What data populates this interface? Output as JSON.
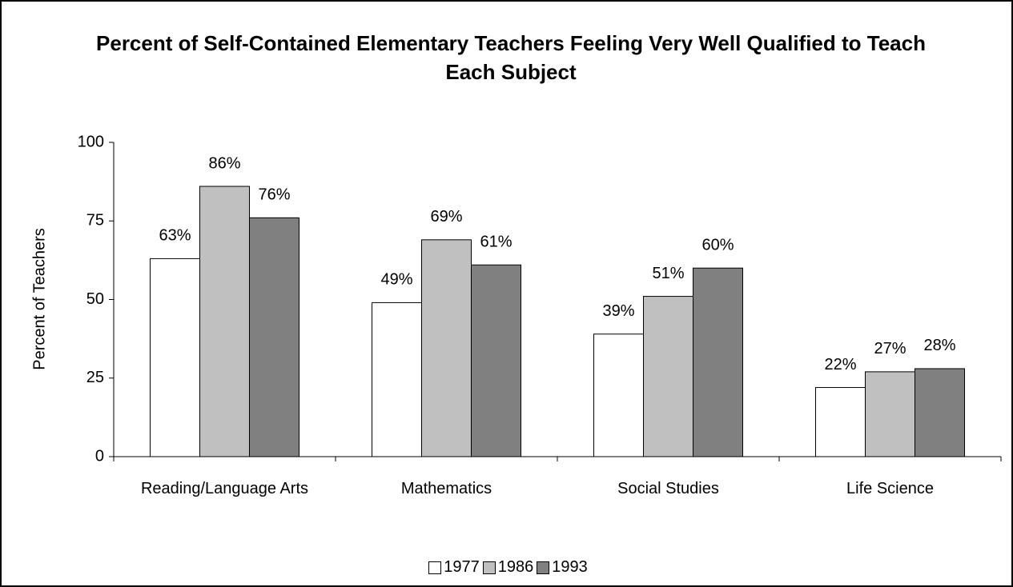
{
  "chart_data": {
    "type": "bar",
    "title": "Percent of Self-Contained Elementary Teachers Feeling Very Well Qualified to Teach Each Subject",
    "y_label": "Percent of Teachers",
    "categories": [
      "Reading/Language Arts",
      "Mathematics",
      "Social Studies",
      "Life Science"
    ],
    "series": [
      {
        "name": "1977",
        "color": "#ffffff",
        "values": [
          63,
          49,
          39,
          22
        ],
        "value_labels": [
          "63%",
          "49%",
          "39%",
          "22%"
        ]
      },
      {
        "name": "1986",
        "color": "#c0c0c0",
        "values": [
          86,
          69,
          51,
          27
        ],
        "value_labels": [
          "86%",
          "69%",
          "51%",
          "27%"
        ]
      },
      {
        "name": "1993",
        "color": "#808080",
        "values": [
          76,
          61,
          60,
          28
        ],
        "value_labels": [
          "76%",
          "61%",
          "60%",
          "28%"
        ]
      }
    ],
    "ylim": [
      0,
      100
    ],
    "yticks": [
      0,
      25,
      50,
      75,
      100
    ],
    "grid": false,
    "legend": "bottom"
  }
}
